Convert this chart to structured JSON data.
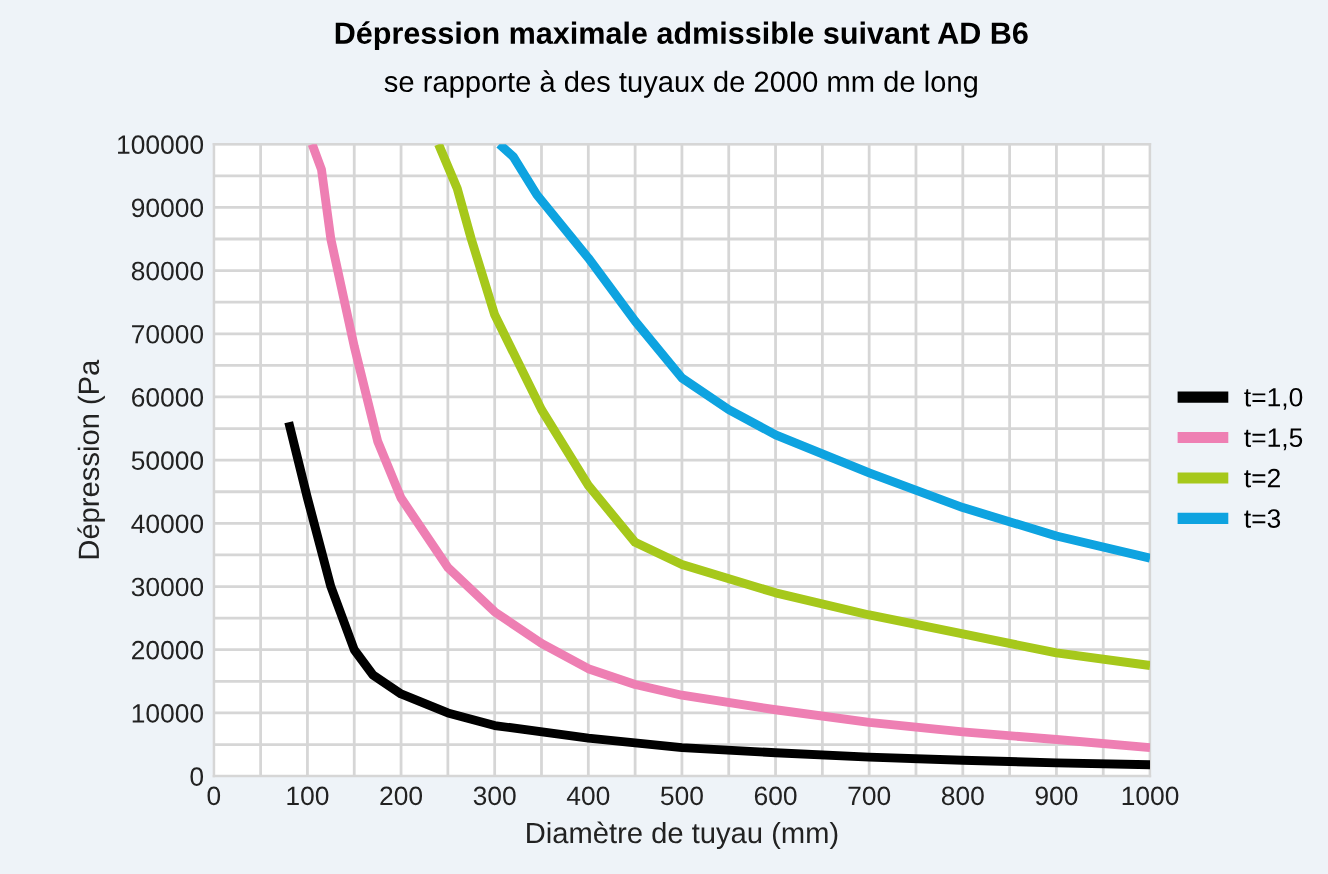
{
  "chart_data": {
    "type": "line",
    "title": "Dépression maximale admissible suivant AD B6",
    "subtitle": "se rapporte à des tuyaux de 2000 mm de long",
    "xlabel": "Diamètre de tuyau (mm)",
    "ylabel": "Dépression (Pa",
    "xlim": [
      0,
      1000
    ],
    "ylim": [
      0,
      100000
    ],
    "xticks": [
      0,
      100,
      200,
      300,
      400,
      500,
      600,
      700,
      800,
      900,
      1000
    ],
    "yticks": [
      0,
      10000,
      20000,
      30000,
      40000,
      50000,
      60000,
      70000,
      80000,
      90000,
      100000
    ],
    "grid": true,
    "legend": "right",
    "marker": "none",
    "line_style": "solid",
    "series": [
      {
        "name": "t=1,0",
        "color": "#000000",
        "x": [
          80,
          100,
          125,
          150,
          170,
          200,
          250,
          300,
          400,
          500,
          600,
          700,
          800,
          900,
          1000
        ],
        "values": [
          56000,
          44000,
          30000,
          20000,
          16000,
          13000,
          10000,
          8000,
          6000,
          4500,
          3700,
          3000,
          2500,
          2100,
          1800
        ]
      },
      {
        "name": "t=1,5",
        "color": "#ee7fb3",
        "x": [
          105,
          115,
          125,
          150,
          175,
          200,
          250,
          300,
          350,
          400,
          450,
          500,
          600,
          700,
          800,
          900,
          1000
        ],
        "values": [
          100000,
          96000,
          85000,
          68000,
          53000,
          44000,
          33000,
          26000,
          21000,
          17000,
          14500,
          12800,
          10500,
          8500,
          7000,
          5800,
          4500
        ]
      },
      {
        "name": "t=2",
        "color": "#a6c81b",
        "x": [
          240,
          260,
          275,
          300,
          350,
          400,
          450,
          500,
          600,
          700,
          800,
          900,
          1000
        ],
        "values": [
          100000,
          93000,
          85000,
          73000,
          58000,
          46000,
          37000,
          33500,
          29000,
          25500,
          22500,
          19500,
          17500
        ]
      },
      {
        "name": "t=3",
        "color": "#0ea3e0",
        "x": [
          305,
          320,
          345,
          400,
          450,
          500,
          550,
          600,
          700,
          800,
          900,
          1000
        ],
        "values": [
          100000,
          98000,
          92000,
          82000,
          72000,
          63000,
          58000,
          54000,
          48000,
          42500,
          38000,
          34500
        ]
      }
    ]
  }
}
